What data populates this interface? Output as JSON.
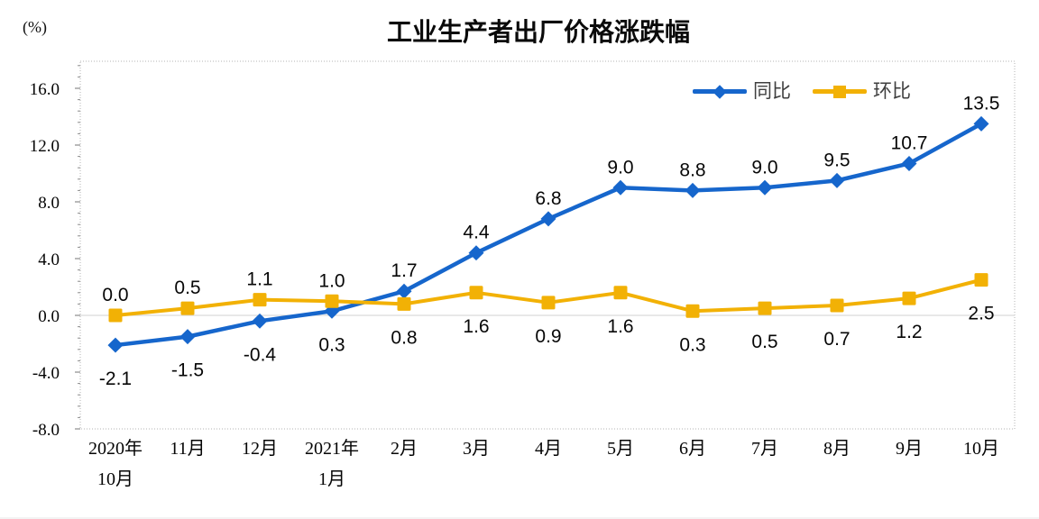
{
  "chart_data": {
    "type": "line",
    "title": "工业生产者出厂价格涨跌幅",
    "unit_label": "(%)",
    "categories": [
      "2020年\n10月",
      "11月",
      "12月",
      "2021年\n1月",
      "2月",
      "3月",
      "4月",
      "5月",
      "6月",
      "7月",
      "8月",
      "9月",
      "10月"
    ],
    "series": [
      {
        "name": "同比",
        "color": "#1666CC",
        "marker": "diamond",
        "values": [
          -2.1,
          -1.5,
          -0.4,
          0.3,
          1.7,
          4.4,
          6.8,
          9.0,
          8.8,
          9.0,
          9.5,
          10.7,
          13.5
        ],
        "labels": [
          "-2.1",
          "-1.5",
          "-0.4",
          "0.3",
          "1.7",
          "4.4",
          "6.8",
          "9.0",
          "8.8",
          "9.0",
          "9.5",
          "10.7",
          "13.5"
        ],
        "label_side": [
          "below",
          "below",
          "below",
          "below",
          "above",
          "above",
          "above",
          "above",
          "above",
          "above",
          "above",
          "above",
          "above"
        ]
      },
      {
        "name": "环比",
        "color": "#F2B105",
        "marker": "square",
        "values": [
          0.0,
          0.5,
          1.1,
          1.0,
          0.8,
          1.6,
          0.9,
          1.6,
          0.3,
          0.5,
          0.7,
          1.2,
          2.5
        ],
        "labels": [
          "0.0",
          "0.5",
          "1.1",
          "1.0",
          "0.8",
          "1.6",
          "0.9",
          "1.6",
          "0.3",
          "0.5",
          "0.7",
          "1.2",
          "2.5"
        ],
        "label_side": [
          "above",
          "above",
          "above",
          "above",
          "below",
          "below",
          "below",
          "below",
          "below",
          "below",
          "below",
          "below",
          "below"
        ]
      }
    ],
    "ylim": [
      -8,
      16
    ],
    "ytick_step": 4,
    "ytick_labels": [
      "16.0",
      "12.0",
      "8.0",
      "4.0",
      "0.0",
      "-4.0",
      "-8.0"
    ],
    "legend_position": "top-right",
    "grid": false,
    "zero_line_color": "#d9d9d9",
    "plot_border_color": "#b3b3b3",
    "tick_color": "#8c8c8c"
  }
}
